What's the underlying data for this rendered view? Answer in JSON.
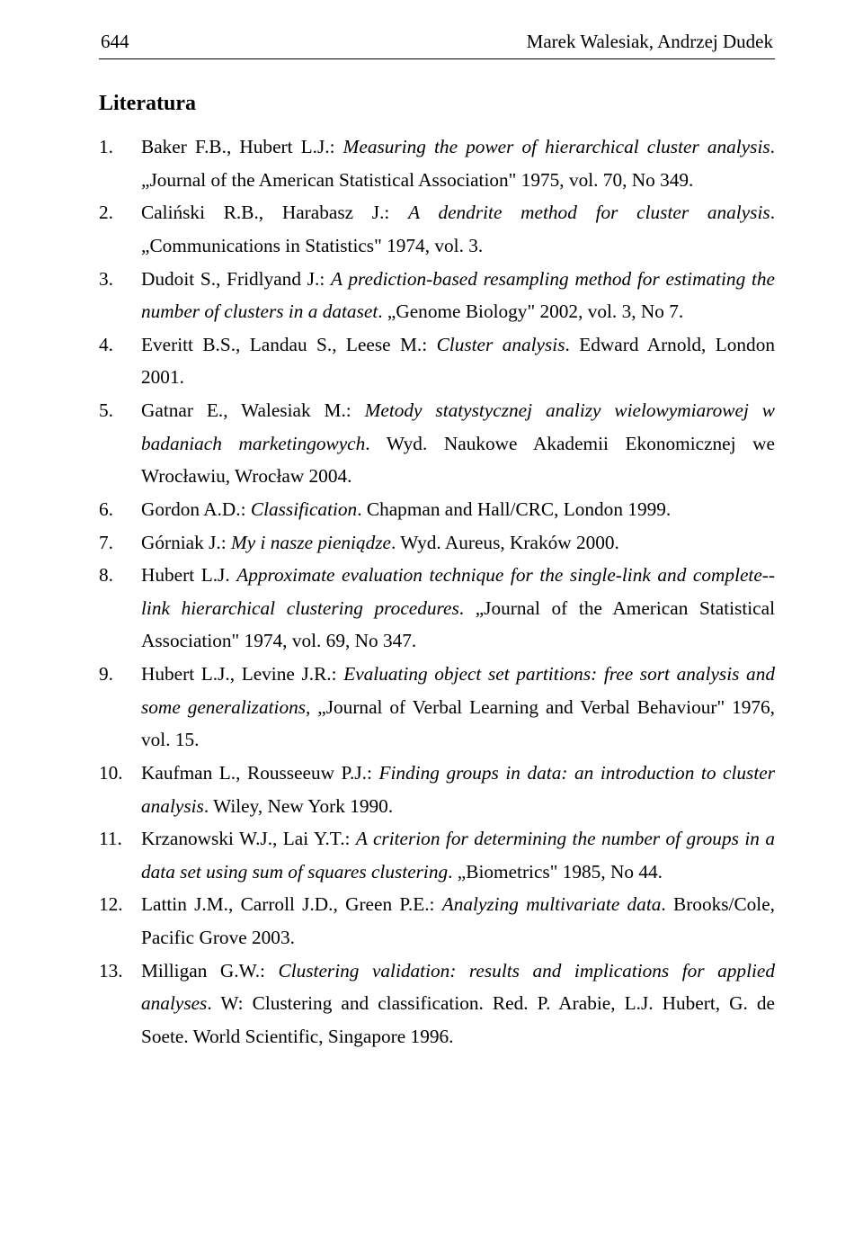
{
  "header": {
    "page_number": "644",
    "authors": "Marek Walesiak, Andrzej Dudek"
  },
  "section_title": "Literatura",
  "numbers": [
    "1.",
    "2.",
    "3.",
    "4.",
    "5.",
    "6.",
    "7.",
    "8.",
    "9.",
    "10.",
    "11.",
    "12.",
    "13."
  ],
  "refs": [
    {
      "a": "Baker F.B., Hubert L.J.: ",
      "i": "Measuring the power of hierarchical cluster analysis",
      "b": ". „Journal of the American Statistical Association\" 1975, vol. 70, No 349."
    },
    {
      "a": "Caliński R.B., Harabasz J.: ",
      "i": "A dendrite method for cluster analysis",
      "b": ". „Communications in Statistics\" 1974, vol. 3."
    },
    {
      "a": "Dudoit S., Fridlyand J.: ",
      "i": "A prediction-based resampling method for estimating the number of clusters in a dataset",
      "b": ". „Genome Biology\" 2002, vol. 3, No 7."
    },
    {
      "a": "Everitt B.S., Landau S., Leese M.: ",
      "i": "Cluster analysis",
      "b": ". Edward Arnold, London 2001."
    },
    {
      "a": "Gatnar E., Walesiak M.: ",
      "i": "Metody statystycznej analizy wielowymiarowej w badaniach marketingowych",
      "b": ". Wyd. Naukowe Akademii Ekonomicznej we Wrocławiu, Wrocław 2004."
    },
    {
      "a": "Gordon A.D.: ",
      "i": "Classification",
      "b": ". Chapman and Hall/CRC, London 1999."
    },
    {
      "a": "Górniak J.: ",
      "i": "My i nasze pieniądze",
      "b": ". Wyd. Aureus, Kraków 2000."
    },
    {
      "a": "Hubert L.J. ",
      "i": "Approximate evaluation technique for the single-link and complete-­-link hierarchical clustering procedures",
      "b": ". „Journal of the American Statistical Association\" 1974, vol. 69, No 347."
    },
    {
      "a": "Hubert L.J., Levine J.R.: ",
      "i": "Evaluating object set partitions: free sort analysis and some generalizations,",
      "b": " „Journal of Verbal Learning and Verbal Behaviour\" 1976, vol. 15."
    },
    {
      "a": "Kaufman L., Rousseeuw P.J.: ",
      "i": "Finding groups in data: an introduction to cluster analysis",
      "b": ". Wiley, New York 1990."
    },
    {
      "a": "Krzanowski W.J., Lai Y.T.: ",
      "i": "A criterion for determining the number of groups in a data set using sum of squares clustering",
      "b": ". „Biometrics\" 1985, No 44."
    },
    {
      "a": "Lattin J.M., Carroll J.D., Green P.E.: ",
      "i": "Analyzing multivariate data",
      "b": ". Brooks/Cole, Pacific Grove 2003."
    },
    {
      "a": "Milligan G.W.: ",
      "i": "Clustering validation: results and implications for applied analyses",
      "b": ". W: Clustering and classification.  Red. P. Arabie, L.J. Hubert, G. de Soete.  World Scientific, Singapore 1996."
    }
  ]
}
